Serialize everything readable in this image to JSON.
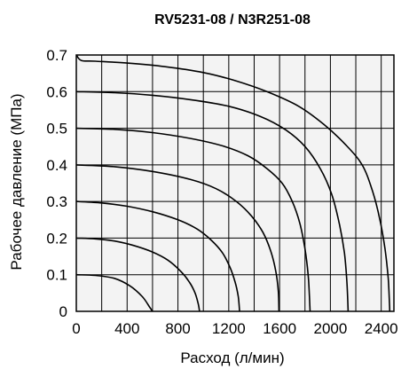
{
  "chart_data": {
    "type": "line",
    "title": "RV5231-08 / N3R251-08",
    "xlabel": "Расход (л/мин)",
    "ylabel": "Рабочее давление (МПа)",
    "xlim": [
      0,
      2500
    ],
    "ylim": [
      0,
      0.7
    ],
    "x_ticks": [
      0,
      400,
      800,
      1200,
      1600,
      2000,
      2400
    ],
    "x_tick_labels": [
      "0",
      "400",
      "800",
      "1200",
      "1600",
      "2000",
      "2400"
    ],
    "y_ticks": [
      0,
      0.1,
      0.2,
      0.3,
      0.4,
      0.5,
      0.6,
      0.7
    ],
    "y_tick_labels": [
      "0",
      "0.1",
      "0.2",
      "0.3",
      "0.4",
      "0.5",
      "0.6",
      "0.7"
    ],
    "x_grid_step": 200,
    "y_grid_step": 0.1,
    "grid": true,
    "line_color": "#000000",
    "plot_background": "#f3f3f3",
    "series": [
      {
        "points": [
          [
            0,
            0.1
          ],
          [
            150,
            0.098
          ],
          [
            300,
            0.09
          ],
          [
            420,
            0.07
          ],
          [
            520,
            0.04
          ],
          [
            580,
            0.01
          ],
          [
            600,
            0
          ]
        ]
      },
      {
        "points": [
          [
            0,
            0.2
          ],
          [
            150,
            0.198
          ],
          [
            300,
            0.192
          ],
          [
            450,
            0.18
          ],
          [
            600,
            0.162
          ],
          [
            720,
            0.14
          ],
          [
            820,
            0.11
          ],
          [
            890,
            0.08
          ],
          [
            935,
            0.05
          ],
          [
            960,
            0.02
          ],
          [
            970,
            0
          ]
        ]
      },
      {
        "points": [
          [
            0,
            0.3
          ],
          [
            200,
            0.296
          ],
          [
            400,
            0.287
          ],
          [
            600,
            0.272
          ],
          [
            800,
            0.25
          ],
          [
            950,
            0.225
          ],
          [
            1060,
            0.195
          ],
          [
            1150,
            0.16
          ],
          [
            1210,
            0.12
          ],
          [
            1250,
            0.08
          ],
          [
            1275,
            0.04
          ],
          [
            1285,
            0
          ]
        ]
      },
      {
        "points": [
          [
            0,
            0.4
          ],
          [
            300,
            0.395
          ],
          [
            600,
            0.382
          ],
          [
            900,
            0.36
          ],
          [
            1100,
            0.335
          ],
          [
            1260,
            0.3
          ],
          [
            1380,
            0.26
          ],
          [
            1470,
            0.215
          ],
          [
            1530,
            0.165
          ],
          [
            1570,
            0.11
          ],
          [
            1590,
            0.055
          ],
          [
            1595,
            0
          ]
        ]
      },
      {
        "points": [
          [
            0,
            0.5
          ],
          [
            300,
            0.497
          ],
          [
            600,
            0.488
          ],
          [
            900,
            0.472
          ],
          [
            1150,
            0.452
          ],
          [
            1350,
            0.425
          ],
          [
            1500,
            0.39
          ],
          [
            1620,
            0.35
          ],
          [
            1700,
            0.3
          ],
          [
            1760,
            0.24
          ],
          [
            1800,
            0.17
          ],
          [
            1825,
            0.1
          ],
          [
            1835,
            0.04
          ],
          [
            1840,
            0
          ]
        ]
      },
      {
        "points": [
          [
            0,
            0.6
          ],
          [
            300,
            0.597
          ],
          [
            600,
            0.59
          ],
          [
            900,
            0.578
          ],
          [
            1200,
            0.56
          ],
          [
            1450,
            0.532
          ],
          [
            1650,
            0.495
          ],
          [
            1800,
            0.45
          ],
          [
            1920,
            0.39
          ],
          [
            2010,
            0.32
          ],
          [
            2070,
            0.24
          ],
          [
            2110,
            0.16
          ],
          [
            2130,
            0.08
          ],
          [
            2140,
            0
          ]
        ]
      },
      {
        "points": [
          [
            0,
            0.7
          ],
          [
            40,
            0.685
          ],
          [
            150,
            0.683
          ],
          [
            400,
            0.678
          ],
          [
            700,
            0.668
          ],
          [
            1000,
            0.652
          ],
          [
            1250,
            0.63
          ],
          [
            1500,
            0.6
          ],
          [
            1750,
            0.56
          ],
          [
            1950,
            0.51
          ],
          [
            2120,
            0.455
          ],
          [
            2250,
            0.4
          ],
          [
            2330,
            0.33
          ],
          [
            2390,
            0.25
          ],
          [
            2430,
            0.17
          ],
          [
            2455,
            0.09
          ],
          [
            2465,
            0.02
          ],
          [
            2467,
            0
          ]
        ]
      }
    ]
  }
}
